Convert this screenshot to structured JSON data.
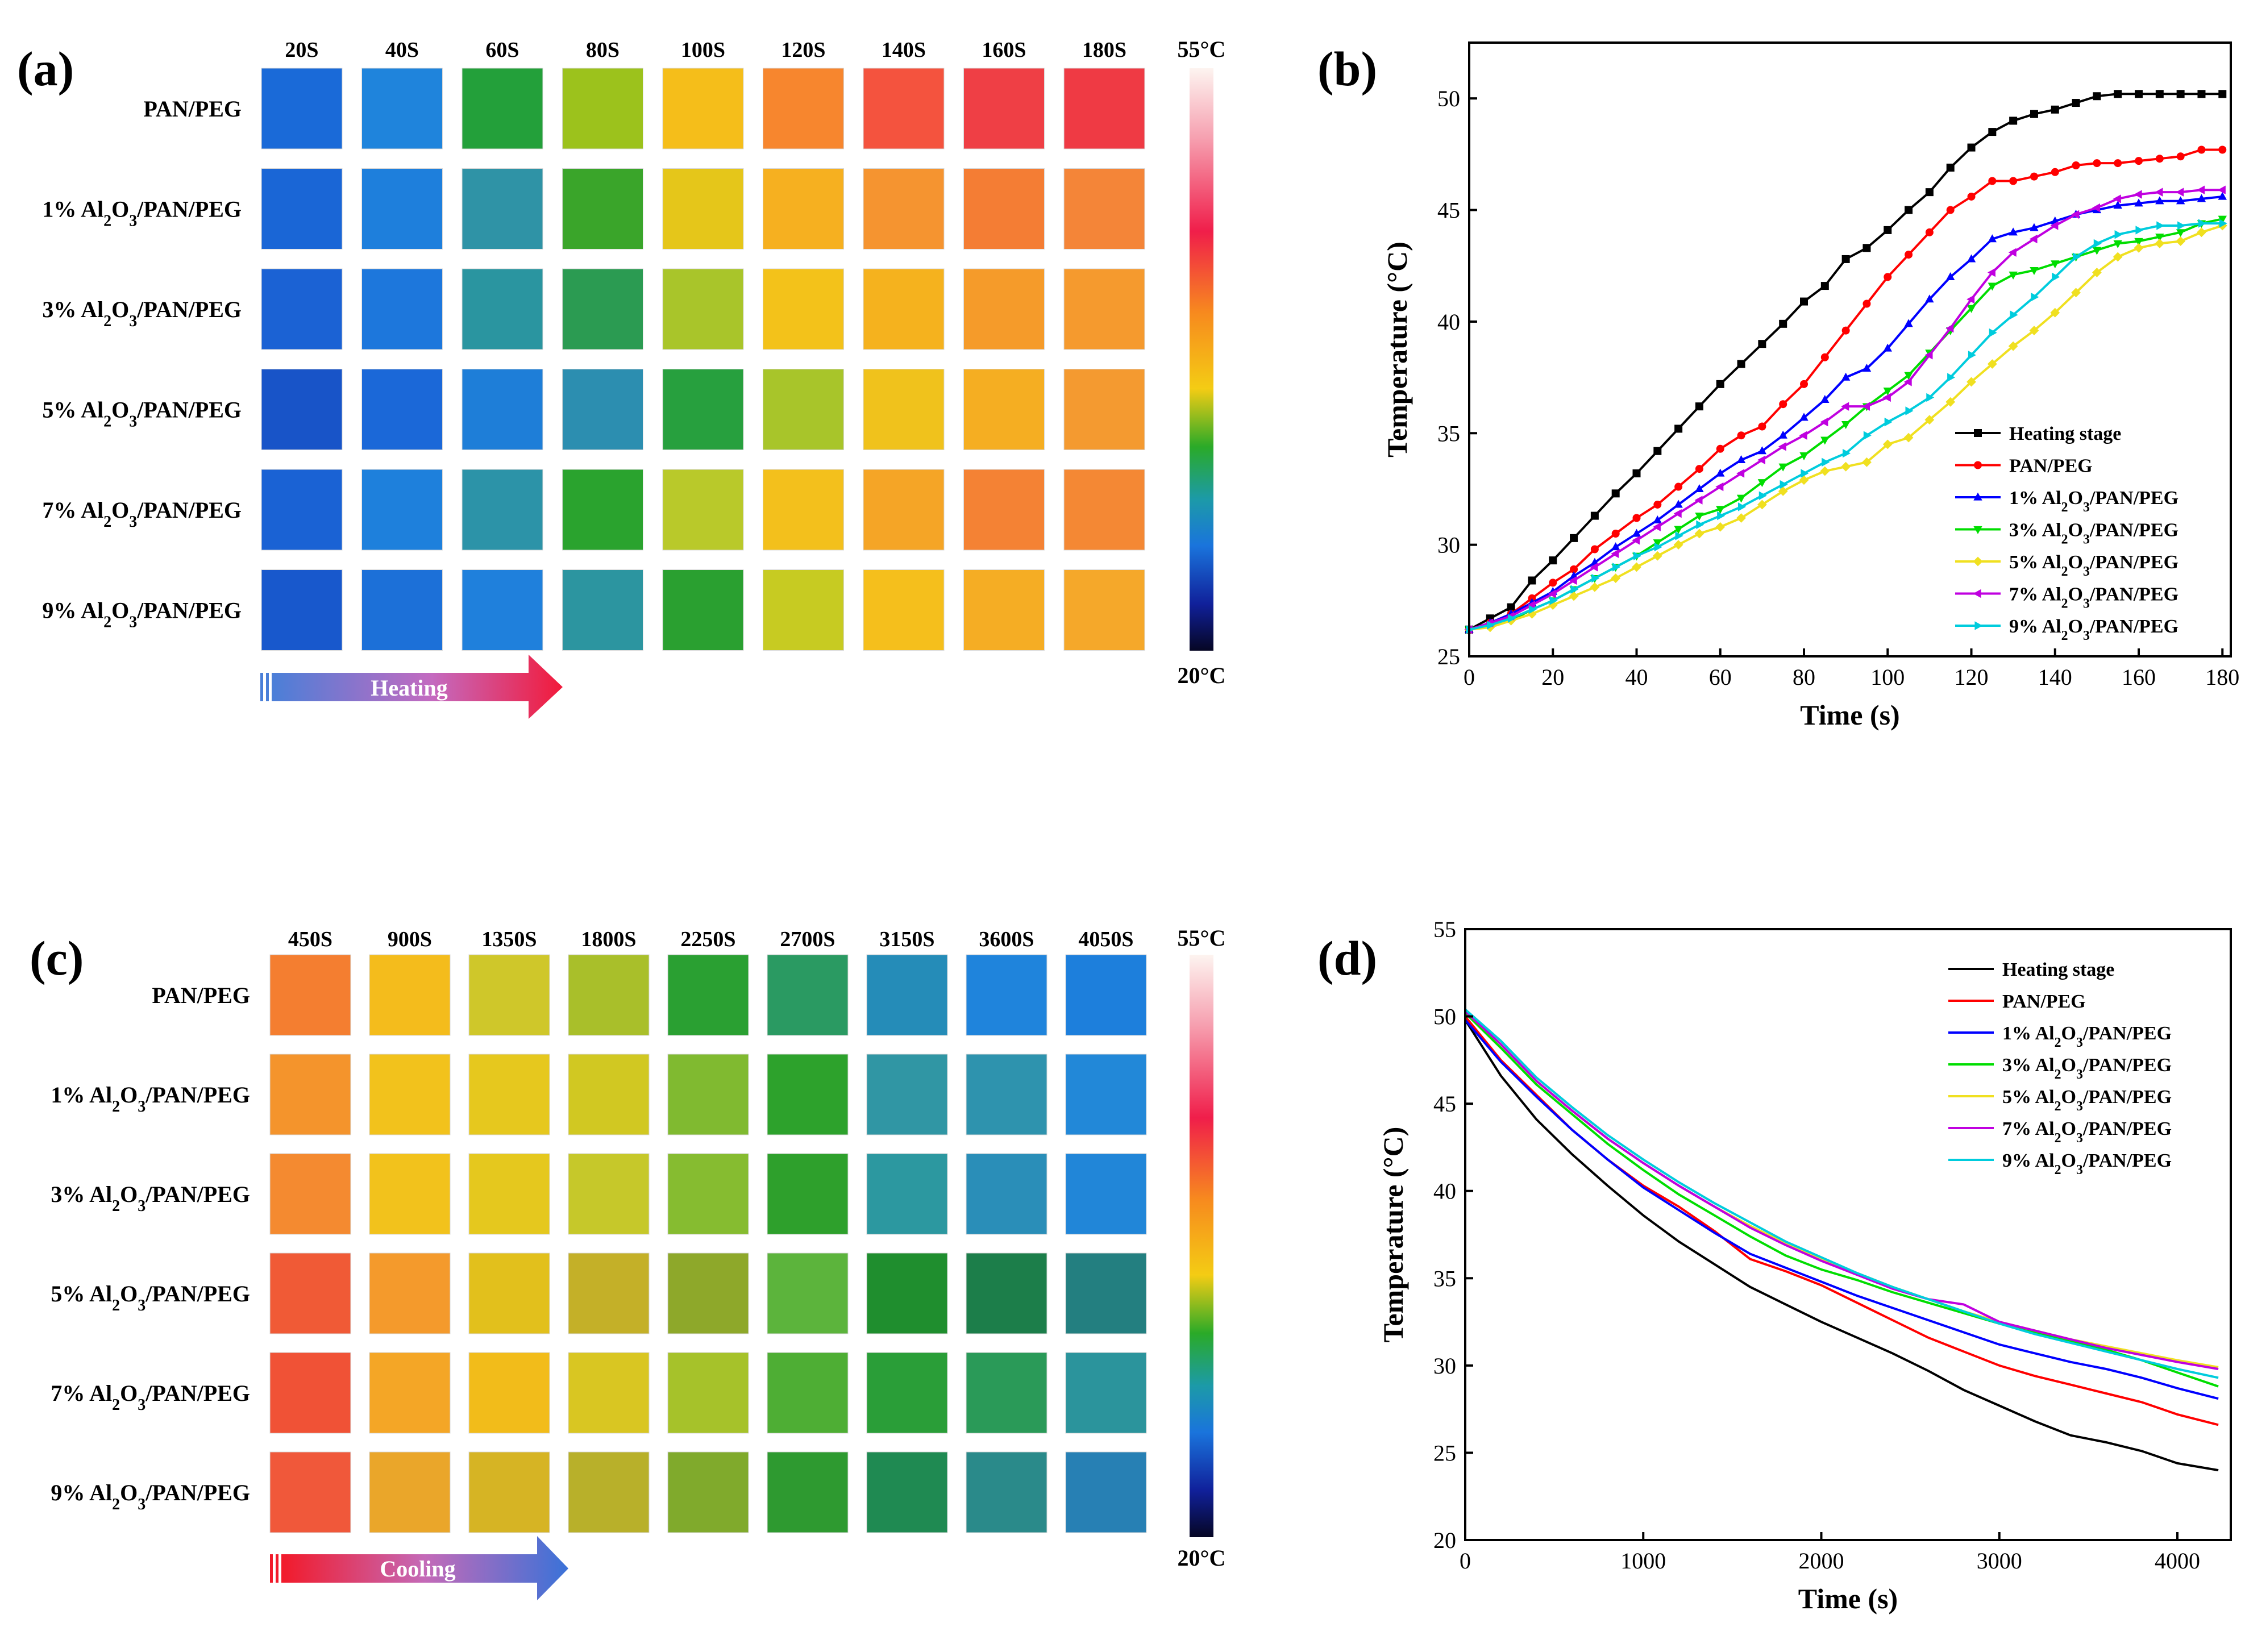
{
  "colorbar": {
    "max_label": "55°C",
    "min_label": "20°C"
  },
  "panels": {
    "a": {
      "tag": "(a)",
      "times": [
        "20S",
        "40S",
        "60S",
        "80S",
        "100S",
        "120S",
        "140S",
        "160S",
        "180S"
      ],
      "rows": [
        {
          "label": "PAN/PEG",
          "colors": [
            "#1a6ad8",
            "#1f84dc",
            "#23a03a",
            "#9cc21c",
            "#f5be1a",
            "#f7862e",
            "#f4533e",
            "#ef3f45",
            "#ef3a44"
          ]
        },
        {
          "label": "1% Al2O3/PAN/PEG",
          "colors": [
            "#1a66d6",
            "#1e7fdc",
            "#2f93a6",
            "#3aa52a",
            "#e5c61a",
            "#f6b020",
            "#f59430",
            "#f47d34",
            "#f48538"
          ]
        },
        {
          "label": "3% Al2O3/PAN/PEG",
          "colors": [
            "#1b62d4",
            "#1d77dc",
            "#2a95a0",
            "#2b9b52",
            "#a9c52a",
            "#f3c21a",
            "#f5b21e",
            "#f59b2a",
            "#f59a2e"
          ]
        },
        {
          "label": "5% Al2O3/PAN/PEG",
          "colors": [
            "#1854c8",
            "#1b68d8",
            "#1e7ed8",
            "#2c8eb0",
            "#27a03e",
            "#a8c52a",
            "#f0c21c",
            "#f5ae22",
            "#f49a30"
          ]
        },
        {
          "label": "7% Al2O3/PAN/PEG",
          "colors": [
            "#1a62d4",
            "#1e80dc",
            "#2c93a8",
            "#2aa32e",
            "#b9c92a",
            "#f3c01c",
            "#f5a526",
            "#f48234",
            "#f48834"
          ]
        },
        {
          "label": "9% Al2O3/PAN/PEG",
          "colors": [
            "#1858cc",
            "#1c70d8",
            "#1f80dc",
            "#2c95a0",
            "#2aa030",
            "#c7cb22",
            "#f5bf1c",
            "#f5ad24",
            "#f5a82a"
          ]
        }
      ],
      "arrow_label": "Heating"
    },
    "c": {
      "tag": "(c)",
      "times": [
        "450S",
        "900S",
        "1350S",
        "1800S",
        "2250S",
        "2700S",
        "3150S",
        "3600S",
        "4050S"
      ],
      "rows": [
        {
          "label": "PAN/PEG",
          "colors": [
            "#f47e30",
            "#f4bc1c",
            "#cfc72a",
            "#a9bf2a",
            "#2aa032",
            "#2a9a62",
            "#258cb8",
            "#1f84dc",
            "#1d7fdc"
          ]
        },
        {
          "label": "1% Al2O3/PAN/PEG",
          "colors": [
            "#f4942c",
            "#f2c21c",
            "#e6c81e",
            "#d1c822",
            "#80ba30",
            "#2da22c",
            "#3096a4",
            "#2e93ae",
            "#2288d8"
          ]
        },
        {
          "label": "3% Al2O3/PAN/PEG",
          "colors": [
            "#f48a30",
            "#f2c21c",
            "#e5c81e",
            "#c6c82a",
            "#86bc30",
            "#2ea02c",
            "#2c98a0",
            "#2a8eb8",
            "#2186d8"
          ]
        },
        {
          "label": "5% Al2O3/PAN/PEG",
          "colors": [
            "#f05a36",
            "#f49a2c",
            "#e2c01c",
            "#c4b028",
            "#8ea82a",
            "#5cb43c",
            "#1f8e2e",
            "#1c7e4a",
            "#237f80"
          ]
        },
        {
          "label": "7% Al2O3/PAN/PEG",
          "colors": [
            "#f05236",
            "#f4a626",
            "#f2bc1a",
            "#d9c622",
            "#a6c22a",
            "#4eae34",
            "#2a9e38",
            "#2a9a58",
            "#2b949c"
          ]
        },
        {
          "label": "9% Al2O3/PAN/PEG",
          "colors": [
            "#f0583a",
            "#eaa62a",
            "#d6b424",
            "#b8b02a",
            "#80aa2c",
            "#2e9a30",
            "#1f8a52",
            "#2a8a8a",
            "#2780b4"
          ]
        }
      ],
      "arrow_label": "Cooling"
    },
    "b": {
      "tag": "(b)"
    },
    "d": {
      "tag": "(d)"
    }
  },
  "chart_data": [
    {
      "id": "b",
      "type": "line",
      "title": "",
      "xlabel": "Time (s)",
      "ylabel": "Temperature (°C)",
      "xlim": [
        0,
        182
      ],
      "ylim": [
        25,
        52.5
      ],
      "xticks": [
        0,
        20,
        40,
        60,
        80,
        100,
        120,
        140,
        160,
        180
      ],
      "yticks": [
        25,
        30,
        35,
        40,
        45,
        50
      ],
      "legend_position": "bottom-right",
      "x": [
        0,
        5,
        10,
        15,
        20,
        25,
        30,
        35,
        40,
        45,
        50,
        55,
        60,
        65,
        70,
        75,
        80,
        85,
        90,
        95,
        100,
        105,
        110,
        115,
        120,
        125,
        130,
        135,
        140,
        145,
        150,
        155,
        160,
        165,
        170,
        175,
        180
      ],
      "series": [
        {
          "name": "Heating stage",
          "color": "#000000",
          "marker": "square",
          "values": [
            26.2,
            26.7,
            27.2,
            28.4,
            29.3,
            30.3,
            31.3,
            32.3,
            33.2,
            34.2,
            35.2,
            36.2,
            37.2,
            38.1,
            39.0,
            39.9,
            40.9,
            41.6,
            42.8,
            43.3,
            44.1,
            45.0,
            45.8,
            46.9,
            47.8,
            48.5,
            49.0,
            49.3,
            49.5,
            49.8,
            50.1,
            50.2,
            50.2,
            50.2,
            50.2,
            50.2,
            50.2
          ]
        },
        {
          "name": "PAN/PEG",
          "color": "#ff0000",
          "marker": "circle",
          "values": [
            26.2,
            26.5,
            26.9,
            27.6,
            28.3,
            28.9,
            29.8,
            30.5,
            31.2,
            31.8,
            32.6,
            33.4,
            34.3,
            34.9,
            35.3,
            36.3,
            37.2,
            38.4,
            39.6,
            40.8,
            42.0,
            43.0,
            44.0,
            45.0,
            45.6,
            46.3,
            46.3,
            46.5,
            46.7,
            47.0,
            47.1,
            47.1,
            47.2,
            47.3,
            47.4,
            47.7,
            47.7
          ]
        },
        {
          "name": "1% Al2O3/PAN/PEG",
          "color": "#0000ff",
          "marker": "triangle-up",
          "values": [
            26.2,
            26.5,
            26.9,
            27.4,
            27.9,
            28.6,
            29.2,
            29.9,
            30.5,
            31.1,
            31.8,
            32.5,
            33.2,
            33.8,
            34.2,
            34.9,
            35.7,
            36.5,
            37.5,
            37.9,
            38.8,
            39.9,
            41.0,
            42.0,
            42.8,
            43.7,
            44.0,
            44.2,
            44.5,
            44.8,
            45.0,
            45.2,
            45.3,
            45.4,
            45.4,
            45.5,
            45.6
          ]
        },
        {
          "name": "3% Al2O3/PAN/PEG",
          "color": "#00dd00",
          "marker": "triangle-down",
          "values": [
            26.2,
            26.4,
            26.6,
            27.1,
            27.5,
            28.0,
            28.5,
            29.0,
            29.5,
            30.1,
            30.7,
            31.3,
            31.6,
            32.1,
            32.8,
            33.5,
            34.0,
            34.7,
            35.4,
            36.2,
            36.9,
            37.6,
            38.6,
            39.6,
            40.6,
            41.6,
            42.1,
            42.3,
            42.6,
            42.9,
            43.2,
            43.5,
            43.6,
            43.8,
            44.0,
            44.4,
            44.6
          ]
        },
        {
          "name": "5% Al2O3/PAN/PEG",
          "color": "#f0e020",
          "marker": "diamond",
          "values": [
            26.2,
            26.3,
            26.6,
            26.9,
            27.3,
            27.7,
            28.1,
            28.5,
            29.0,
            29.5,
            30.0,
            30.5,
            30.8,
            31.2,
            31.8,
            32.4,
            32.9,
            33.3,
            33.5,
            33.7,
            34.5,
            34.8,
            35.6,
            36.4,
            37.3,
            38.1,
            38.9,
            39.6,
            40.4,
            41.3,
            42.2,
            42.9,
            43.3,
            43.5,
            43.6,
            44.0,
            44.3
          ]
        },
        {
          "name": "7% Al2O3/PAN/PEG",
          "color": "#c000e0",
          "marker": "triangle-left",
          "values": [
            26.2,
            26.5,
            26.8,
            27.3,
            27.8,
            28.4,
            29.0,
            29.6,
            30.2,
            30.8,
            31.4,
            32.0,
            32.6,
            33.2,
            33.8,
            34.4,
            34.9,
            35.5,
            36.2,
            36.2,
            36.6,
            37.3,
            38.5,
            39.7,
            41.0,
            42.2,
            43.1,
            43.7,
            44.3,
            44.8,
            45.1,
            45.5,
            45.7,
            45.8,
            45.8,
            45.9,
            45.9
          ]
        },
        {
          "name": "9% Al2O3/PAN/PEG",
          "color": "#00ccdd",
          "marker": "triangle-right",
          "values": [
            26.2,
            26.4,
            26.7,
            27.1,
            27.5,
            28.0,
            28.5,
            29.0,
            29.5,
            29.9,
            30.4,
            30.9,
            31.3,
            31.7,
            32.2,
            32.7,
            33.2,
            33.7,
            34.1,
            34.9,
            35.5,
            36.0,
            36.6,
            37.5,
            38.5,
            39.5,
            40.3,
            41.1,
            42.0,
            42.9,
            43.5,
            43.9,
            44.1,
            44.3,
            44.3,
            44.4,
            44.4
          ]
        }
      ]
    },
    {
      "id": "d",
      "type": "line",
      "title": "",
      "xlabel": "Time (s)",
      "ylabel": "Temperature (°C)",
      "xlim": [
        0,
        4300
      ],
      "ylim": [
        20,
        55
      ],
      "xticks": [
        0,
        1000,
        2000,
        3000,
        4000
      ],
      "yticks": [
        20,
        25,
        30,
        35,
        40,
        45,
        50,
        55
      ],
      "legend_position": "top-right",
      "x": [
        0,
        200,
        400,
        600,
        800,
        1000,
        1200,
        1400,
        1600,
        1800,
        2000,
        2200,
        2400,
        2600,
        2800,
        3000,
        3200,
        3400,
        3600,
        3800,
        4000,
        4230
      ],
      "series": [
        {
          "name": "Heating stage",
          "color": "#000000",
          "values": [
            49.8,
            46.6,
            44.1,
            42.1,
            40.3,
            38.6,
            37.1,
            35.8,
            34.5,
            33.5,
            32.5,
            31.6,
            30.7,
            29.7,
            28.6,
            27.7,
            26.8,
            26.0,
            25.6,
            25.1,
            24.4,
            24.0
          ]
        },
        {
          "name": "PAN/PEG",
          "color": "#ff0000",
          "values": [
            50.0,
            47.5,
            45.5,
            43.5,
            41.8,
            40.3,
            39.1,
            37.7,
            36.1,
            35.4,
            34.6,
            33.6,
            32.6,
            31.6,
            30.8,
            30.0,
            29.4,
            28.9,
            28.4,
            27.9,
            27.2,
            26.6
          ]
        },
        {
          "name": "1% Al2O3/PAN/PEG",
          "color": "#0000ff",
          "values": [
            49.8,
            47.4,
            45.4,
            43.5,
            41.8,
            40.2,
            38.9,
            37.6,
            36.4,
            35.6,
            34.8,
            34.0,
            33.3,
            32.6,
            31.9,
            31.2,
            30.7,
            30.2,
            29.8,
            29.3,
            28.7,
            28.1
          ]
        },
        {
          "name": "3% Al2O3/PAN/PEG",
          "color": "#00dd00",
          "values": [
            50.2,
            48.2,
            46.1,
            44.4,
            42.7,
            41.2,
            39.8,
            38.6,
            37.4,
            36.3,
            35.5,
            34.9,
            34.2,
            33.6,
            33.0,
            32.4,
            31.9,
            31.4,
            30.9,
            30.3,
            29.6,
            28.8
          ]
        },
        {
          "name": "5% Al2O3/PAN/PEG",
          "color": "#f0e020",
          "values": [
            50.3,
            48.4,
            46.3,
            44.6,
            43.0,
            41.6,
            40.3,
            39.1,
            38.0,
            37.0,
            36.1,
            35.3,
            34.5,
            33.8,
            33.1,
            32.5,
            32.0,
            31.5,
            31.1,
            30.7,
            30.3,
            29.9
          ]
        },
        {
          "name": "7% Al2O3/PAN/PEG",
          "color": "#c000e0",
          "values": [
            50.3,
            48.4,
            46.3,
            44.6,
            43.0,
            41.6,
            40.3,
            39.1,
            37.9,
            36.9,
            36.0,
            35.2,
            34.4,
            33.8,
            33.5,
            32.5,
            32.0,
            31.5,
            31.0,
            30.6,
            30.2,
            29.8
          ]
        },
        {
          "name": "9% Al2O3/PAN/PEG",
          "color": "#00ccdd",
          "values": [
            50.4,
            48.6,
            46.5,
            44.8,
            43.2,
            41.8,
            40.5,
            39.3,
            38.2,
            37.1,
            36.2,
            35.3,
            34.5,
            33.8,
            33.1,
            32.4,
            31.8,
            31.3,
            30.8,
            30.3,
            29.8,
            29.3
          ]
        }
      ]
    }
  ]
}
